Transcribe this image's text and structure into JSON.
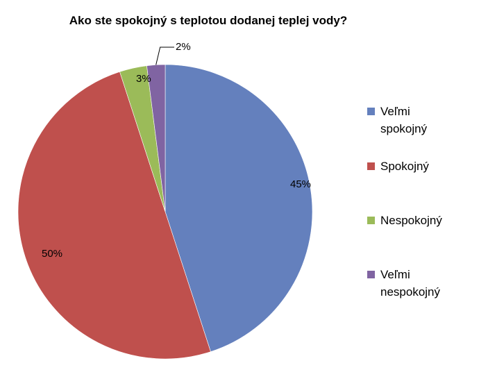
{
  "chart_data": {
    "type": "pie",
    "title": "Ako ste spokojný  s teplotou dodanej teplej vody?",
    "categories": [
      "Veľmi spokojný",
      "Spokojný",
      "Nespokojný",
      "Veľmi nespokojný"
    ],
    "values": [
      45,
      50,
      3,
      2
    ],
    "data_labels": [
      "45%",
      "50%",
      "3%",
      "2%"
    ],
    "colors": [
      "#6480bd",
      "#bf504d",
      "#9bbb59",
      "#8064a2"
    ],
    "legend_placement": "right",
    "legend": [
      {
        "lines": [
          "Veľmi",
          "spokojný"
        ]
      },
      {
        "lines": [
          "Spokojný"
        ]
      },
      {
        "lines": [
          "Nespokojný"
        ]
      },
      {
        "lines": [
          "Veľmi",
          "nespokojný"
        ]
      }
    ]
  }
}
